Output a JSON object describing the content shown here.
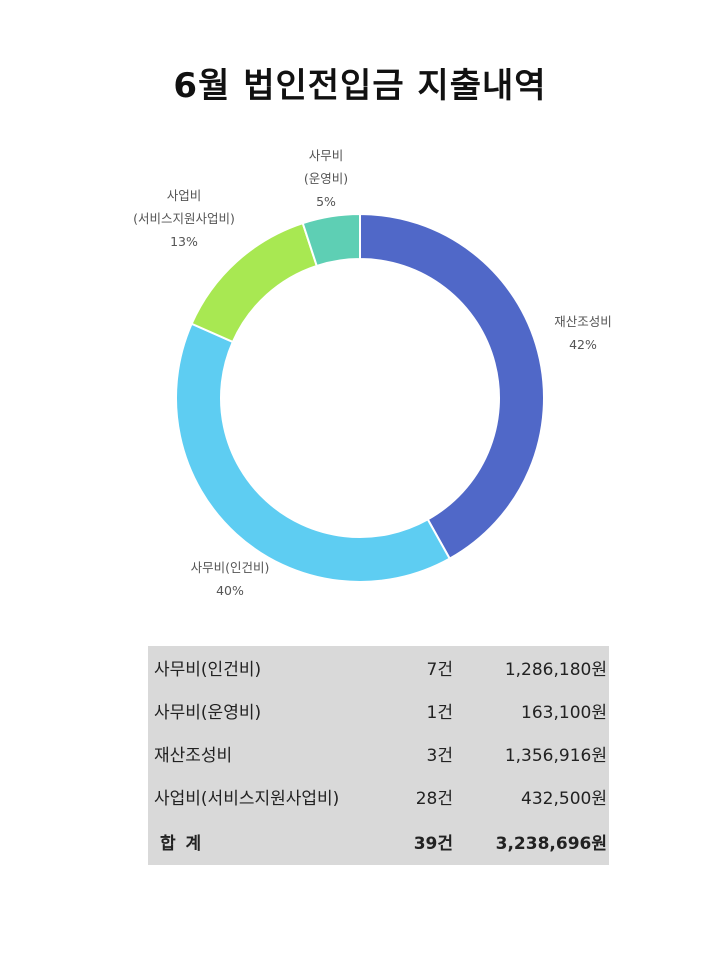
{
  "title": "6월 법인전입금 지출내역",
  "colors": {
    "background": "#ffffff",
    "table_bg": "#d9d9d9",
    "slice_colors": [
      "#5068c8",
      "#5ecdf2",
      "#a8e852",
      "#5ecfb4"
    ]
  },
  "chart_data": {
    "type": "pie",
    "style": "donut",
    "slices": [
      {
        "label": "재산조성비",
        "label_lines": [
          "재산조성비"
        ],
        "percent_label": "42%",
        "value": 1356916
      },
      {
        "label": "사무비(인건비)",
        "label_lines": [
          "사무비(인건비)"
        ],
        "percent_label": "40%",
        "value": 1286180
      },
      {
        "label": "사업비(서비스지원사업비)",
        "label_lines": [
          "사업비",
          "(서비스지원사업비)"
        ],
        "percent_label": "13%",
        "value": 432500
      },
      {
        "label": "사무비(운영비)",
        "label_lines": [
          "사무비",
          "(운영비)"
        ],
        "percent_label": "5%",
        "value": 163100
      }
    ]
  },
  "summary_table": {
    "rows": [
      {
        "category": "사무비(인건비)",
        "count": "7건",
        "amount": "1,286,180원"
      },
      {
        "category": "사무비(운영비)",
        "count": "1건",
        "amount": "163,100원"
      },
      {
        "category": "재산조성비",
        "count": "3건",
        "amount": "1,356,916원"
      },
      {
        "category": "사업비(서비스지원사업비)",
        "count": "28건",
        "amount": "432,500원"
      }
    ],
    "total": {
      "label": "합 계",
      "count": "39건",
      "amount": "3,238,696원"
    }
  }
}
